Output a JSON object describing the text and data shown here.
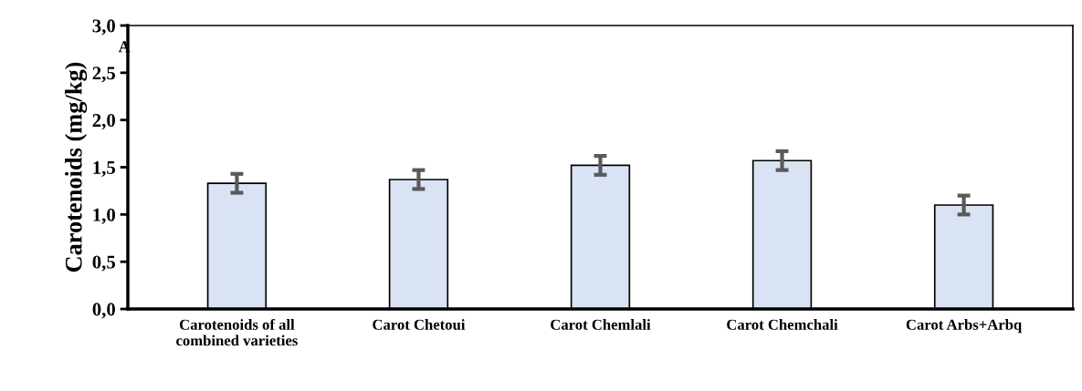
{
  "chart_data": {
    "type": "bar",
    "categories": [
      "Carotenoids of all\ncombined varieties",
      "Carot Chetoui",
      "Carot Chemlali",
      "Carot Chemchali",
      "Carot Arbs+Arbq"
    ],
    "values": [
      1.33,
      1.37,
      1.52,
      1.57,
      1.1
    ],
    "errors": [
      0.1,
      0.1,
      0.1,
      0.1,
      0.1
    ],
    "color": "#dae3f3",
    "ylabel": "Carotenoids (mg/kg)",
    "ylim": [
      0,
      3
    ],
    "yticks": [
      {
        "value": 0,
        "label": "0,0"
      },
      {
        "value": 0.5,
        "label": "0,5"
      },
      {
        "value": 1,
        "label": "1,0"
      },
      {
        "value": 1.5,
        "label": "1,5"
      },
      {
        "value": 2,
        "label": "2,0"
      },
      {
        "value": 2.5,
        "label": "2,5"
      },
      {
        "value": 3,
        "label": "3,0"
      }
    ],
    "annotations": [
      "A"
    ],
    "grid": false,
    "legend": false
  }
}
